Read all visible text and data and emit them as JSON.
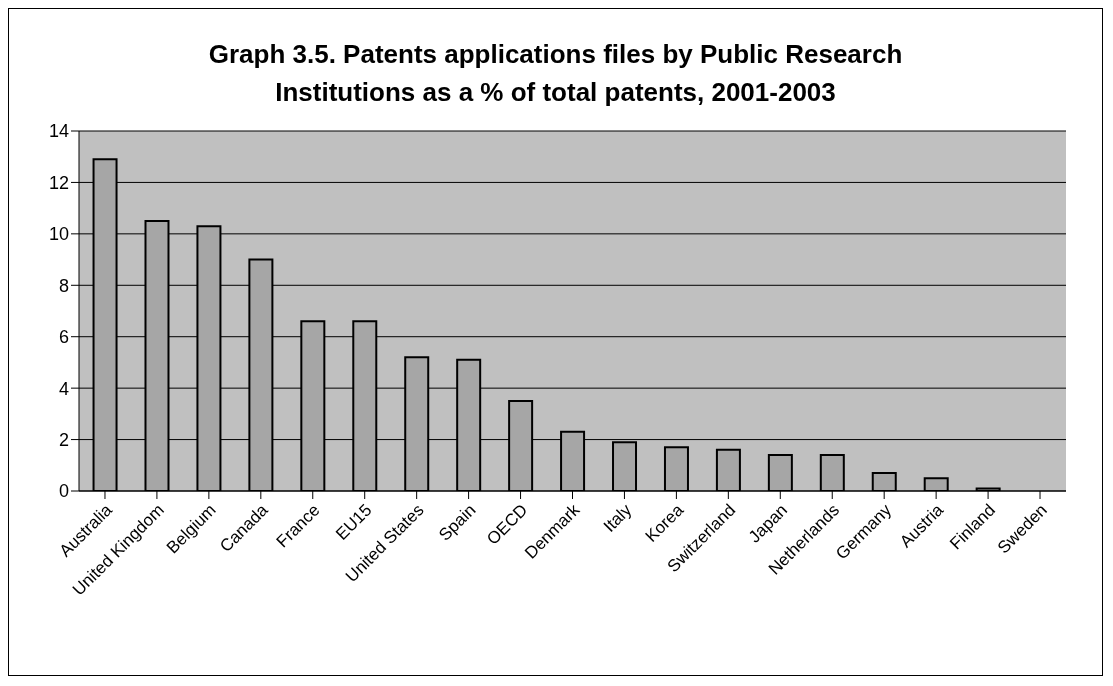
{
  "chart_data": {
    "type": "bar",
    "title": "Graph 3.5. Patents applications files by Public Research Institutions as a % of total patents, 2001-2003",
    "categories": [
      "Australia",
      "United Kingdom",
      "Belgium",
      "Canada",
      "France",
      "EU15",
      "United States",
      "Spain",
      "OECD",
      "Denmark",
      "Italy",
      "Korea",
      "Switzerland",
      "Japan",
      "Netherlands",
      "Germany",
      "Austria",
      "Finland",
      "Sweden"
    ],
    "values": [
      12.9,
      10.5,
      10.3,
      9.0,
      6.6,
      6.6,
      5.2,
      5.1,
      3.5,
      2.3,
      1.9,
      1.7,
      1.6,
      1.4,
      1.4,
      0.7,
      0.5,
      0.1,
      0
    ],
    "color": "#a6a6a6",
    "ylim": [
      0,
      14
    ],
    "yticks": [
      0,
      2,
      4,
      6,
      8,
      10,
      12,
      14
    ],
    "grid": "y",
    "legend": false
  }
}
